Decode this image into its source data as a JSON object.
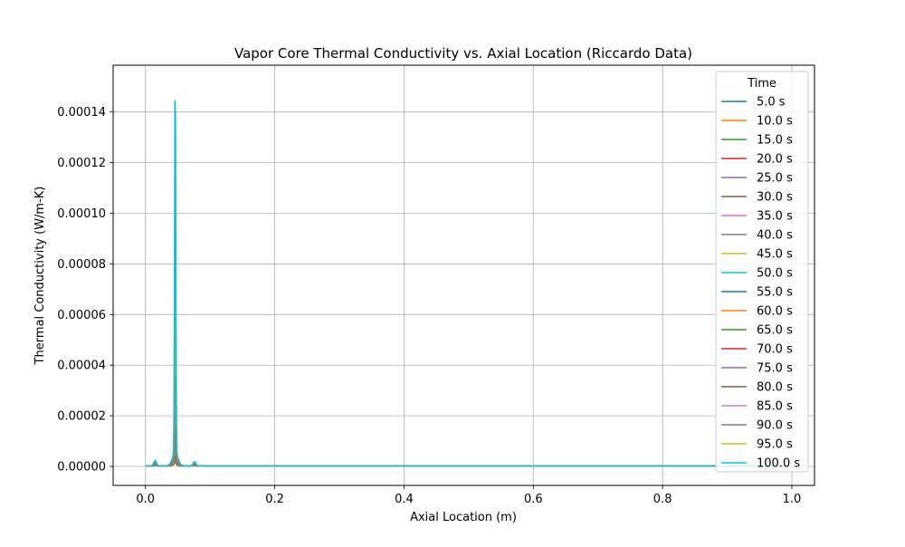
{
  "chart_data": {
    "type": "line",
    "title": "Vapor Core Thermal Conductivity vs. Axial Location (Riccardo Data)",
    "xlabel": "Axial Location (m)",
    "ylabel": "Thermal Conductivity (W/m-K)",
    "xlim": [
      -0.05,
      1.035
    ],
    "ylim": [
      -7.5e-06,
      0.0001585
    ],
    "xticks": [
      0.0,
      0.2,
      0.4,
      0.6,
      0.8,
      1.0
    ],
    "xtick_labels": [
      "0.0",
      "0.2",
      "0.4",
      "0.6",
      "0.8",
      "1.0"
    ],
    "yticks": [
      0,
      2e-05,
      4e-05,
      6e-05,
      8e-05,
      0.0001,
      0.00012,
      0.00014
    ],
    "ytick_labels": [
      "0.00000",
      "0.00002",
      "0.00004",
      "0.00006",
      "0.00008",
      "0.00010",
      "0.00012",
      "0.00014"
    ],
    "grid": true,
    "legend_title": "Time",
    "legend_position": "upper-right",
    "x": [
      0.0,
      0.008,
      0.012,
      0.015,
      0.018,
      0.022,
      0.03,
      0.038,
      0.042,
      0.044,
      0.045,
      0.046,
      0.047,
      0.048,
      0.05,
      0.055,
      0.065,
      0.072,
      0.076,
      0.08,
      0.09,
      0.1,
      0.15,
      0.3,
      0.5,
      0.6,
      0.7,
      0.8,
      0.9,
      1.0
    ],
    "series": [
      {
        "name": "5.0 s",
        "color": "#1f77b4",
        "peak": 2e-06,
        "side": 2e-07,
        "tail": 2e-07
      },
      {
        "name": "10.0 s",
        "color": "#ff7f0e",
        "peak": 3e-06,
        "side": 3e-07,
        "tail": 2e-07
      },
      {
        "name": "15.0 s",
        "color": "#2ca02c",
        "peak": 4e-06,
        "side": 4e-07,
        "tail": 2e-07
      },
      {
        "name": "20.0 s",
        "color": "#d62728",
        "peak": 5e-06,
        "side": 5e-07,
        "tail": 2e-07
      },
      {
        "name": "25.0 s",
        "color": "#9467bd",
        "peak": 6e-06,
        "side": 6e-07,
        "tail": 2e-07
      },
      {
        "name": "30.0 s",
        "color": "#8c564b",
        "peak": 7e-06,
        "side": 7e-07,
        "tail": 2e-07
      },
      {
        "name": "35.0 s",
        "color": "#e377c2",
        "peak": 8e-06,
        "side": 8e-07,
        "tail": 2e-07
      },
      {
        "name": "40.0 s",
        "color": "#7f7f7f",
        "peak": 9e-06,
        "side": 9e-07,
        "tail": 2e-07
      },
      {
        "name": "45.0 s",
        "color": "#bcbd22",
        "peak": 1e-05,
        "side": 1e-06,
        "tail": 2e-07
      },
      {
        "name": "50.0 s",
        "color": "#17becf",
        "peak": 1.2e-05,
        "side": 1.1e-06,
        "tail": 2e-07
      },
      {
        "name": "55.0 s",
        "color": "#1f77b4",
        "peak": 1.4e-05,
        "side": 1.2e-06,
        "tail": 2e-07
      },
      {
        "name": "60.0 s",
        "color": "#ff7f0e",
        "peak": 1.6e-05,
        "side": 1.3e-06,
        "tail": 2e-07
      },
      {
        "name": "65.0 s",
        "color": "#2ca02c",
        "peak": 1.9e-05,
        "side": 1.4e-06,
        "tail": 2e-07
      },
      {
        "name": "70.0 s",
        "color": "#d62728",
        "peak": 2.2e-05,
        "side": 1.5e-06,
        "tail": 2e-07
      },
      {
        "name": "75.0 s",
        "color": "#9467bd",
        "peak": 2.6e-05,
        "side": 1.6e-06,
        "tail": 2e-07
      },
      {
        "name": "80.0 s",
        "color": "#8c564b",
        "peak": 3e-05,
        "side": 1.7e-06,
        "tail": 2e-07
      },
      {
        "name": "85.0 s",
        "color": "#e377c2",
        "peak": 4.5e-05,
        "side": 1.8e-06,
        "tail": 2e-07
      },
      {
        "name": "90.0 s",
        "color": "#7f7f7f",
        "peak": 6e-05,
        "side": 1.9e-06,
        "tail": 2e-07
      },
      {
        "name": "95.0 s",
        "color": "#bcbd22",
        "peak": 0.0001,
        "side": 2e-06,
        "tail": 2e-07
      },
      {
        "name": "100.0 s",
        "color": "#17becf",
        "peak": 0.000151,
        "side": 2.1e-06,
        "tail": 2e-07
      }
    ]
  }
}
